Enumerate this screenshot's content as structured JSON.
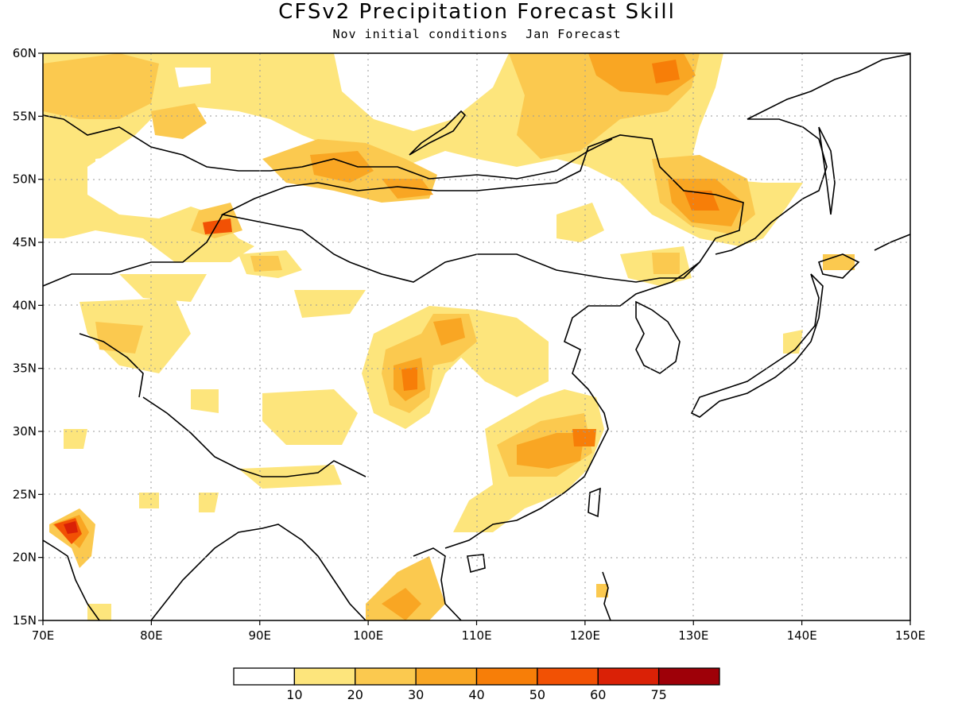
{
  "header": {
    "title": "CFSv2 Precipitation Forecast Skill",
    "subtitle_left": "Nov initial conditions",
    "subtitle_right": "Jan Forecast"
  },
  "map": {
    "lon_range": [
      70,
      150
    ],
    "lat_range": [
      15,
      60
    ],
    "lon_ticks": [
      "70E",
      "80E",
      "90E",
      "100E",
      "110E",
      "120E",
      "130E",
      "140E",
      "150E"
    ],
    "lat_ticks": [
      "15N",
      "20N",
      "25N",
      "30N",
      "35N",
      "40N",
      "45N",
      "50N",
      "55N",
      "60N"
    ],
    "grid": "dotted"
  },
  "colorbar": {
    "levels": [
      "10",
      "20",
      "30",
      "40",
      "50",
      "60",
      "75"
    ],
    "colors": [
      "#ffffff",
      "#fde57c",
      "#fbc94f",
      "#f9a623",
      "#f77e08",
      "#f25104",
      "#da2106",
      "#9e0008"
    ]
  }
}
